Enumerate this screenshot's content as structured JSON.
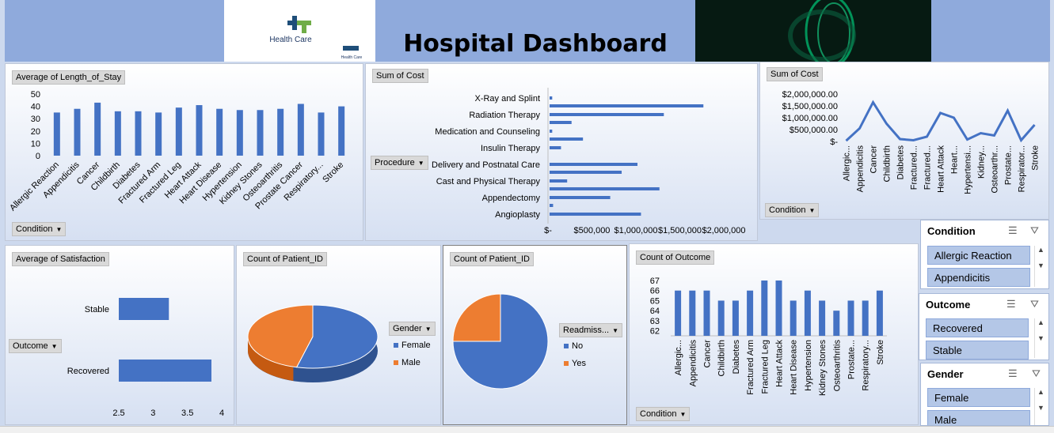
{
  "header": {
    "title": "Hospital Dashboard",
    "logo_text": "Health Care",
    "logo_sub": "Health Care"
  },
  "colors": {
    "bar": "#4472c4",
    "orange": "#ed7d31",
    "banner": "#8faadc",
    "slicer_item": "#b4c7e7"
  },
  "los": {
    "title": "Average of Length_of_Stay",
    "filter": "Condition"
  },
  "cost_proc": {
    "title": "Sum of Cost",
    "filter": "Procedure"
  },
  "cost_cond": {
    "title": "Sum of Cost",
    "filter": "Condition"
  },
  "satisfaction": {
    "title": "Average of Satisfaction",
    "filter": "Outcome"
  },
  "gender_pie": {
    "title": "Count of Patient_ID",
    "filter": "Gender",
    "legend": [
      "Female",
      "Male"
    ]
  },
  "readm_pie": {
    "title": "Count of Patient_ID",
    "filter": "Readmiss...",
    "legend": [
      "No",
      "Yes"
    ]
  },
  "outcome_cnt": {
    "title": "Count of Outcome",
    "filter": "Condition"
  },
  "slicers": {
    "condition": {
      "title": "Condition",
      "items": [
        "Allergic Reaction",
        "Appendicitis"
      ]
    },
    "outcome": {
      "title": "Outcome",
      "items": [
        "Recovered",
        "Stable"
      ]
    },
    "gender": {
      "title": "Gender",
      "items": [
        "Female",
        "Male"
      ]
    }
  },
  "chart_data": [
    {
      "type": "bar",
      "title": "Average of Length_of_Stay",
      "categories": [
        "Allergic Reaction",
        "Appendicitis",
        "Cancer",
        "Childbirth",
        "Diabetes",
        "Fractured Arm",
        "Fractured Leg",
        "Heart Attack",
        "Heart Disease",
        "Hypertension",
        "Kidney Stones",
        "Osteoarthritis",
        "Prostate Cancer",
        "Respiratory...",
        "Stroke"
      ],
      "values": [
        35,
        38,
        43,
        36,
        36,
        35,
        39,
        41,
        38,
        37,
        37,
        38,
        42,
        35,
        40
      ],
      "ylim": [
        0,
        50
      ],
      "yticks": [
        0,
        10,
        20,
        30,
        40,
        50
      ]
    },
    {
      "type": "bar",
      "orientation": "horizontal",
      "title": "Sum of Cost",
      "categories": [
        "X-Ray and Splint",
        "Radiation Therapy",
        "Medication and Counseling",
        "Insulin Therapy",
        "Delivery and Postnatal Care",
        "Cast and Physical Therapy",
        "Appendectomy",
        "Angioplasty"
      ],
      "pairs": [
        [
          30000,
          1750000
        ],
        [
          1300000,
          250000
        ],
        [
          30000,
          380000
        ],
        [
          130000,
          0
        ],
        [
          1000000,
          820000
        ],
        [
          200000,
          1250000
        ],
        [
          690000,
          40000
        ],
        [
          1040000,
          0
        ]
      ],
      "xlim": [
        0,
        2000000
      ],
      "xticks": [
        "$-",
        "$500,000",
        "$1,000,000",
        "$1,500,000",
        "$2,000,000"
      ]
    },
    {
      "type": "line",
      "title": "Sum of Cost",
      "categories": [
        "Allergic...",
        "Appendicitis",
        "Cancer",
        "Childbirth",
        "Diabetes",
        "Fractured...",
        "Fractured...",
        "Heart Attack",
        "Heart...",
        "Hypertensi...",
        "Kidney...",
        "Osteoarthr...",
        "Prostate...",
        "Respirator...",
        "Stroke"
      ],
      "values": [
        30000,
        550000,
        1650000,
        750000,
        100000,
        50000,
        200000,
        1200000,
        1000000,
        80000,
        350000,
        250000,
        1300000,
        50000,
        700000
      ],
      "ylim": [
        0,
        2000000
      ],
      "yticks": [
        "$-",
        "$500,000.00",
        "$1,000,000.00",
        "$1,500,000.00",
        "$2,000,000.00"
      ]
    },
    {
      "type": "bar",
      "orientation": "horizontal",
      "title": "Average of Satisfaction",
      "categories": [
        "Stable",
        "Recovered"
      ],
      "values": [
        3.23,
        3.85
      ],
      "xlim": [
        2.5,
        4
      ],
      "xticks": [
        "2.5",
        "3",
        "3.5",
        "4"
      ]
    },
    {
      "type": "pie",
      "title": "Count of Patient_ID",
      "labels": [
        "Female",
        "Male"
      ],
      "values": [
        54,
        46
      ]
    },
    {
      "type": "pie",
      "title": "Count of Patient_ID",
      "labels": [
        "No",
        "Yes"
      ],
      "values": [
        75,
        25
      ]
    },
    {
      "type": "bar",
      "title": "Count of Outcome",
      "categories": [
        "Allergic...",
        "Appendicitis",
        "Cancer",
        "Childbirth",
        "Diabetes",
        "Fractured Arm",
        "Fractured Leg",
        "Heart Attack",
        "Heart Disease",
        "Hypertension",
        "Kidney Stones",
        "Osteoarthritis",
        "Prostate...",
        "Respiratory...",
        "Stroke"
      ],
      "values": [
        66,
        66,
        66,
        65,
        65,
        66,
        67,
        67,
        65,
        66,
        65,
        64,
        65,
        65,
        66
      ],
      "ylim": [
        61.5,
        67
      ],
      "yticks": [
        "62",
        "63",
        "64",
        "65",
        "66",
        "67"
      ]
    }
  ]
}
